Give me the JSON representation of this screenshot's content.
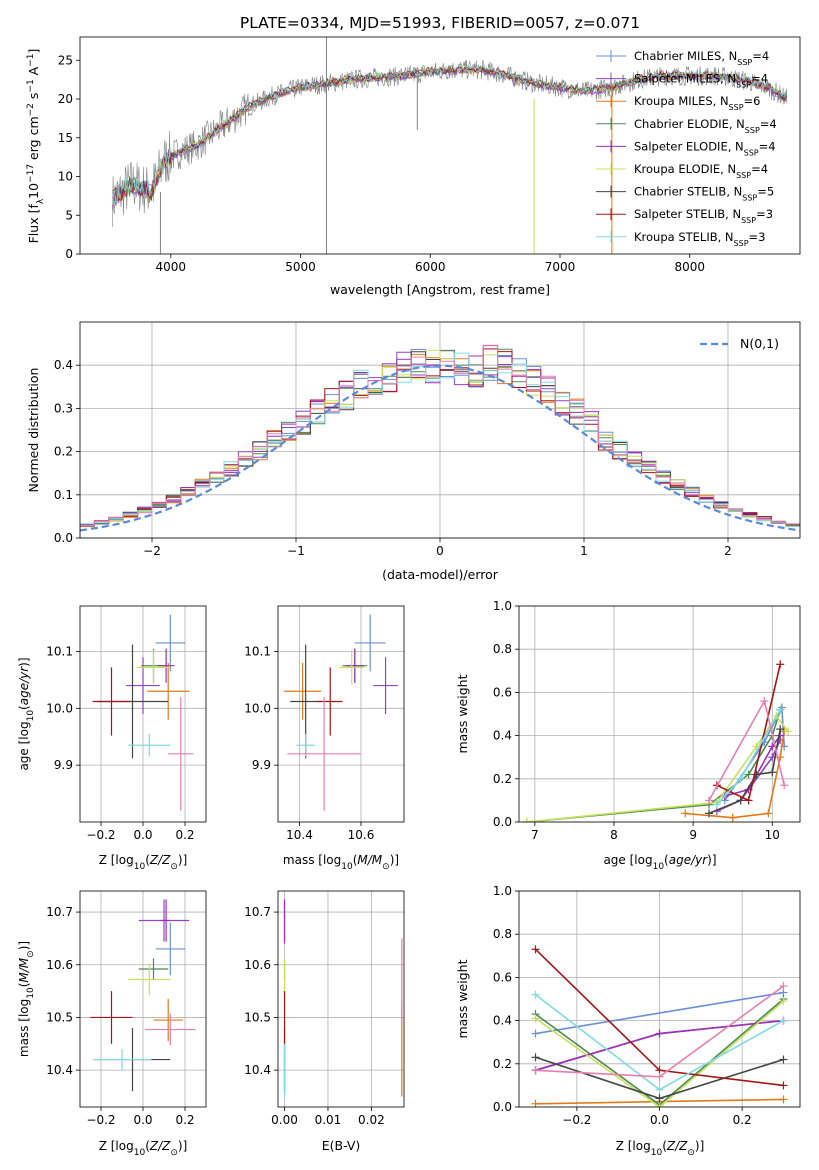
{
  "figure": {
    "title": "PLATE=0334, MJD=51993, FIBERID=0057, z=0.071"
  },
  "colors": {
    "Chabrier MILES": "#6a8fd8",
    "Salpeter MILES": "#8e44c9",
    "Kroupa MILES": "#e07b1a",
    "Chabrier ELODIE": "#4d8b55",
    "Salpeter ELODIE": "#9b2fb5",
    "Kroupa ELODIE": "#c6e05a",
    "Chabrier STELIB": "#444444",
    "Salpeter STELIB": "#a31515",
    "Kroupa STELIB": "#7fdbe0",
    "extra": "#e67fb0",
    "data": "#808080",
    "gauss": "#5b8ad8"
  },
  "chart_data": [
    {
      "id": "spectrum",
      "type": "line",
      "xlabel": "wavelength [Angstrom, rest frame]",
      "ylabel": "Flux [f_λ10^-17 erg cm^-2 s^-1 A^-1]",
      "xlim": [
        3300,
        8850
      ],
      "ylim": [
        0,
        28
      ],
      "xticks": [
        4000,
        5000,
        6000,
        7000,
        8000
      ],
      "yticks": [
        0,
        5,
        10,
        15,
        20,
        25
      ],
      "legend_position": "upper right",
      "legend": [
        {
          "name": "Chabrier MILES",
          "nssp": "4"
        },
        {
          "name": "Salpeter MILES",
          "nssp": "4"
        },
        {
          "name": "Kroupa MILES",
          "nssp": "6"
        },
        {
          "name": "Chabrier ELODIE",
          "nssp": "4"
        },
        {
          "name": "Salpeter ELODIE",
          "nssp": "4"
        },
        {
          "name": "Kroupa ELODIE",
          "nssp": "4"
        },
        {
          "name": "Chabrier STELIB",
          "nssp": "5"
        },
        {
          "name": "Salpeter STELIB",
          "nssp": "3"
        },
        {
          "name": "Kroupa STELIB",
          "nssp": "3"
        }
      ],
      "continuum": {
        "x": [
          3550,
          3700,
          3850,
          3950,
          4050,
          4200,
          4400,
          4600,
          4800,
          5000,
          5200,
          5400,
          5600,
          5800,
          6000,
          6200,
          6400,
          6600,
          6800,
          7000,
          7200,
          7400,
          7600,
          7800,
          8000,
          8200,
          8400,
          8600,
          8750
        ],
        "y": [
          7,
          9,
          8,
          12,
          13,
          14,
          16.5,
          19,
          20.5,
          21.5,
          22,
          22.5,
          22.8,
          23,
          23.5,
          23.8,
          23.8,
          23,
          22,
          21.5,
          21,
          21.5,
          22.5,
          23,
          23,
          23,
          22.5,
          21.5,
          20
        ]
      },
      "features": [
        {
          "name": "gap-5200",
          "x": 5200,
          "ymin": 0,
          "ymax": 28
        },
        {
          "name": "dip-5900",
          "x": 5900,
          "ymin": 16,
          "ymax": 23
        },
        {
          "name": "dip-6800",
          "x": 6800,
          "ymin": 0,
          "ymax": 20
        },
        {
          "name": "dip-7400",
          "x": 7400,
          "ymin": 0,
          "ymax": 22
        },
        {
          "name": "dip-3900",
          "x": 3920,
          "ymin": 0,
          "ymax": 8
        }
      ]
    },
    {
      "id": "residual-hist",
      "type": "line",
      "xlabel": "(data-model)/error",
      "ylabel": "Normed distribution",
      "xlim": [
        -2.5,
        2.5
      ],
      "ylim": [
        0,
        0.5
      ],
      "xticks": [
        -2,
        -1,
        0,
        1,
        2
      ],
      "yticks": [
        0.0,
        0.1,
        0.2,
        0.3,
        0.4
      ],
      "legend_label": "N(0,1)",
      "legend_position": "upper right",
      "bin_width": 0.1
    },
    {
      "id": "age-vs-Z",
      "type": "scatter",
      "xlabel": "Z [log10(Z/Z⊙)]",
      "ylabel": "age [log10(age/yr)]",
      "xlim": [
        -0.3,
        0.3
      ],
      "ylim": [
        9.8,
        10.18
      ],
      "xticks": [
        -0.2,
        0.0,
        0.2
      ],
      "yticks": [
        9.9,
        10.0,
        10.1
      ],
      "points": [
        {
          "series": "Chabrier MILES",
          "x": 0.13,
          "y": 10.115,
          "xerr": 0.07,
          "yerr": 0.05
        },
        {
          "series": "Salpeter MILES",
          "x": 0.0,
          "y": 10.04,
          "xerr": 0.08,
          "yerr": 0.05
        },
        {
          "series": "Kroupa MILES",
          "x": 0.12,
          "y": 10.03,
          "xerr": 0.1,
          "yerr": 0.05
        },
        {
          "series": "Chabrier ELODIE",
          "x": 0.05,
          "y": 10.075,
          "xerr": 0.06,
          "yerr": 0.03
        },
        {
          "series": "Salpeter ELODIE",
          "x": 0.11,
          "y": 10.075,
          "xerr": 0.04,
          "yerr": 0.03
        },
        {
          "series": "Kroupa ELODIE",
          "x": 0.05,
          "y": 10.072,
          "xerr": 0.08,
          "yerr": 0.03
        },
        {
          "series": "Chabrier STELIB",
          "x": -0.05,
          "y": 10.012,
          "xerr": 0.17,
          "yerr": 0.1
        },
        {
          "series": "Salpeter STELIB",
          "x": -0.15,
          "y": 10.012,
          "xerr": 0.09,
          "yerr": 0.06
        },
        {
          "series": "Kroupa STELIB",
          "x": 0.03,
          "y": 9.935,
          "xerr": 0.1,
          "yerr": 0.02
        },
        {
          "series": "extra",
          "x": 0.18,
          "y": 9.92,
          "xerr": 0.06,
          "yerr": 0.1
        }
      ]
    },
    {
      "id": "age-vs-mass",
      "type": "scatter",
      "xlabel": "mass [log10(M/M⊙)]",
      "ylabel": "",
      "xlim": [
        10.33,
        10.74
      ],
      "ylim": [
        9.8,
        10.18
      ],
      "xticks": [
        10.4,
        10.6
      ],
      "yticks": [
        9.9,
        10.0,
        10.1
      ],
      "points": [
        {
          "series": "Chabrier MILES",
          "x": 10.63,
          "y": 10.115,
          "xerr": 0.05,
          "yerr": 0.05
        },
        {
          "series": "Salpeter MILES",
          "x": 10.68,
          "y": 10.04,
          "xerr": 0.04,
          "yerr": 0.05
        },
        {
          "series": "Kroupa MILES",
          "x": 10.41,
          "y": 10.03,
          "xerr": 0.06,
          "yerr": 0.05
        },
        {
          "series": "Chabrier ELODIE",
          "x": 10.58,
          "y": 10.075,
          "xerr": 0.04,
          "yerr": 0.03
        },
        {
          "series": "Salpeter ELODIE",
          "x": 10.58,
          "y": 10.075,
          "xerr": 0.03,
          "yerr": 0.03
        },
        {
          "series": "Kroupa ELODIE",
          "x": 10.57,
          "y": 10.072,
          "xerr": 0.04,
          "yerr": 0.03
        },
        {
          "series": "Chabrier STELIB",
          "x": 10.42,
          "y": 10.012,
          "xerr": 0.05,
          "yerr": 0.1
        },
        {
          "series": "Salpeter STELIB",
          "x": 10.5,
          "y": 10.012,
          "xerr": 0.04,
          "yerr": 0.06
        },
        {
          "series": "Kroupa STELIB",
          "x": 10.42,
          "y": 9.935,
          "xerr": 0.03,
          "yerr": 0.02
        },
        {
          "series": "extra",
          "x": 10.48,
          "y": 9.92,
          "xerr": 0.12,
          "yerr": 0.1
        }
      ]
    },
    {
      "id": "weight-vs-age",
      "type": "line",
      "xlabel": "age [log10(age/yr)]",
      "ylabel": "mass weight",
      "xlim": [
        6.8,
        10.35
      ],
      "ylim": [
        0,
        1.0
      ],
      "xticks": [
        7,
        8,
        9,
        10
      ],
      "yticks": [
        0.0,
        0.2,
        0.4,
        0.6,
        0.8,
        1.0
      ],
      "series": [
        {
          "name": "Chabrier MILES",
          "x": [
            9.4,
            9.9,
            10.12,
            10.15
          ],
          "y": [
            0.1,
            0.37,
            0.53,
            0.35
          ]
        },
        {
          "name": "Salpeter MILES",
          "x": [
            9.3,
            9.6,
            10.0,
            10.1
          ],
          "y": [
            0.05,
            0.1,
            0.3,
            0.38
          ]
        },
        {
          "name": "Kroupa MILES",
          "x": [
            8.9,
            9.5,
            9.95,
            10.1,
            10.15
          ],
          "y": [
            0.04,
            0.02,
            0.04,
            0.3,
            0.42
          ]
        },
        {
          "name": "Chabrier ELODIE",
          "x": [
            6.9,
            9.2,
            9.7,
            10.0,
            10.1
          ],
          "y": [
            0.0,
            0.08,
            0.22,
            0.4,
            0.52
          ]
        },
        {
          "name": "Salpeter ELODIE",
          "x": [
            9.4,
            9.7,
            10.0,
            10.1
          ],
          "y": [
            0.12,
            0.15,
            0.35,
            0.4
          ]
        },
        {
          "name": "Kroupa ELODIE",
          "x": [
            6.9,
            9.3,
            9.8,
            10.05,
            10.2
          ],
          "y": [
            0.0,
            0.09,
            0.35,
            0.49,
            0.42
          ]
        },
        {
          "name": "Chabrier STELIB",
          "x": [
            9.2,
            9.6,
            9.8,
            10.0,
            10.1
          ],
          "y": [
            0.04,
            0.1,
            0.22,
            0.23,
            0.43
          ]
        },
        {
          "name": "Salpeter STELIB",
          "x": [
            9.3,
            9.7,
            10.1
          ],
          "y": [
            0.17,
            0.1,
            0.73
          ]
        },
        {
          "name": "Kroupa STELIB",
          "x": [
            9.3,
            9.6,
            10.1
          ],
          "y": [
            0.08,
            0.2,
            0.52
          ]
        },
        {
          "name": "extra",
          "x": [
            9.2,
            9.9,
            10.15
          ],
          "y": [
            0.1,
            0.56,
            0.17
          ]
        }
      ]
    },
    {
      "id": "mass-vs-Z",
      "type": "scatter",
      "xlabel": "Z [log10(Z/Z⊙)]",
      "ylabel": "mass [log10(M/M⊙)]",
      "xlim": [
        -0.3,
        0.3
      ],
      "ylim": [
        10.33,
        10.74
      ],
      "xticks": [
        -0.2,
        0.0,
        0.2
      ],
      "yticks": [
        10.4,
        10.5,
        10.6,
        10.7
      ],
      "points": [
        {
          "series": "Chabrier MILES",
          "x": 0.13,
          "y": 10.63,
          "xerr": 0.07,
          "yerr": 0.05
        },
        {
          "series": "Salpeter MILES",
          "x": 0.1,
          "y": 10.684,
          "xerr": 0.12,
          "yerr": 0.04
        },
        {
          "series": "Kroupa MILES",
          "x": 0.12,
          "y": 10.495,
          "xerr": 0.07,
          "yerr": 0.04
        },
        {
          "series": "Chabrier ELODIE",
          "x": 0.05,
          "y": 10.592,
          "xerr": 0.07,
          "yerr": 0.02
        },
        {
          "series": "Salpeter ELODIE",
          "x": 0.11,
          "y": 10.684,
          "xerr": 0.02,
          "yerr": 0.04
        },
        {
          "series": "Kroupa ELODIE",
          "x": 0.03,
          "y": 10.572,
          "xerr": 0.1,
          "yerr": 0.03
        },
        {
          "series": "Chabrier STELIB",
          "x": -0.05,
          "y": 10.42,
          "xerr": 0.18,
          "yerr": 0.06
        },
        {
          "series": "Salpeter STELIB",
          "x": -0.15,
          "y": 10.5,
          "xerr": 0.1,
          "yerr": 0.05
        },
        {
          "series": "Kroupa STELIB",
          "x": -0.1,
          "y": 10.42,
          "xerr": 0.14,
          "yerr": 0.02
        },
        {
          "series": "extra",
          "x": 0.13,
          "y": 10.477,
          "xerr": 0.12,
          "yerr": 0.03
        }
      ]
    },
    {
      "id": "mass-vs-ebv",
      "type": "scatter",
      "xlabel": "E(B-V)",
      "ylabel": "",
      "xlim": [
        -0.0015,
        0.0275
      ],
      "ylim": [
        10.33,
        10.74
      ],
      "xticks": [
        0.0,
        0.01,
        0.02
      ],
      "yticks": [
        10.4,
        10.5,
        10.6,
        10.7
      ],
      "points": [
        {
          "series": "Chabrier MILES",
          "x": 0.0,
          "y": 10.4,
          "xerr": 0,
          "yerr": 0.05
        },
        {
          "series": "Salpeter MILES",
          "x": 0.0,
          "y": 10.68,
          "xerr": 0,
          "yerr": 0.04
        },
        {
          "series": "Kroupa MILES",
          "x": 0.027,
          "y": 10.44,
          "xerr": 0,
          "yerr": 0.09
        },
        {
          "series": "Chabrier ELODIE",
          "x": 0.0,
          "y": 10.59,
          "xerr": 0,
          "yerr": 0.02
        },
        {
          "series": "Salpeter ELODIE",
          "x": 0.0,
          "y": 10.684,
          "xerr": 0,
          "yerr": 0.04
        },
        {
          "series": "Kroupa ELODIE",
          "x": 0.0,
          "y": 10.58,
          "xerr": 0,
          "yerr": 0.03
        },
        {
          "series": "Chabrier STELIB",
          "x": 0.0,
          "y": 10.42,
          "xerr": 0,
          "yerr": 0.06
        },
        {
          "series": "Salpeter STELIB",
          "x": 0.0,
          "y": 10.5,
          "xerr": 0,
          "yerr": 0.05
        },
        {
          "series": "Kroupa STELIB",
          "x": 0.0,
          "y": 10.4,
          "xerr": 0,
          "yerr": 0.05
        },
        {
          "series": "extra",
          "x": 0.027,
          "y": 10.57,
          "xerr": 0,
          "yerr": 0.08
        }
      ]
    },
    {
      "id": "weight-vs-Z",
      "type": "line",
      "xlabel": "Z [log10(Z/Z⊙)]",
      "ylabel": "mass weight",
      "xlim": [
        -0.34,
        0.34
      ],
      "ylim": [
        0,
        1.0
      ],
      "xticks": [
        -0.2,
        0.0,
        0.2
      ],
      "yticks": [
        0.0,
        0.2,
        0.4,
        0.6,
        0.8,
        1.0
      ],
      "series": [
        {
          "name": "Chabrier MILES",
          "x": [
            -0.3,
            0.3
          ],
          "y": [
            0.34,
            0.53
          ]
        },
        {
          "name": "Salpeter MILES",
          "x": [
            -0.3,
            0.0,
            0.3
          ],
          "y": [
            0.17,
            0.34,
            0.4
          ]
        },
        {
          "name": "Kroupa MILES",
          "x": [
            -0.3,
            0.0,
            0.3
          ],
          "y": [
            0.015,
            0.025,
            0.035
          ]
        },
        {
          "name": "Chabrier ELODIE",
          "x": [
            -0.3,
            0.0,
            0.3
          ],
          "y": [
            0.43,
            0.01,
            0.5
          ]
        },
        {
          "name": "Salpeter ELODIE",
          "x": [
            -0.3,
            0.0,
            0.3
          ],
          "y": [
            0.17,
            0.34,
            0.4
          ]
        },
        {
          "name": "Kroupa ELODIE",
          "x": [
            -0.3,
            0.0,
            0.3
          ],
          "y": [
            0.41,
            0.0,
            0.49
          ]
        },
        {
          "name": "Chabrier STELIB",
          "x": [
            -0.3,
            0.0,
            0.3
          ],
          "y": [
            0.23,
            0.04,
            0.22
          ]
        },
        {
          "name": "Salpeter STELIB",
          "x": [
            -0.3,
            0.0,
            0.3
          ],
          "y": [
            0.73,
            0.17,
            0.1
          ]
        },
        {
          "name": "Kroupa STELIB",
          "x": [
            -0.3,
            0.0,
            0.3
          ],
          "y": [
            0.52,
            0.08,
            0.4
          ]
        },
        {
          "name": "extra",
          "x": [
            -0.3,
            0.0,
            0.3
          ],
          "y": [
            0.17,
            0.14,
            0.56
          ]
        }
      ]
    }
  ]
}
